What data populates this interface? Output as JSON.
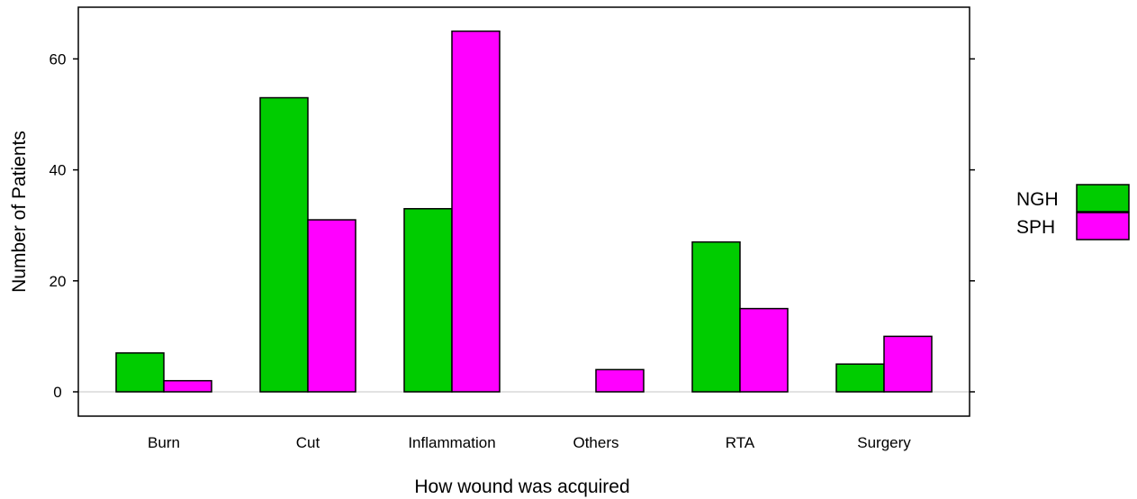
{
  "chart_data": {
    "type": "bar",
    "title": "",
    "xlabel": "How wound was acquired",
    "ylabel": "Number of Patients",
    "categories": [
      "Burn",
      "Cut",
      "Inflammation",
      "Others",
      "RTA",
      "Surgery"
    ],
    "series": [
      {
        "name": "NGH",
        "color": "#00cc00",
        "values": [
          7,
          53,
          33,
          0,
          27,
          5
        ]
      },
      {
        "name": "SPH",
        "color": "#ff00ff",
        "values": [
          2,
          31,
          65,
          4,
          15,
          10
        ]
      }
    ],
    "ylim": [
      0,
      70
    ],
    "yticks": [
      0,
      20,
      40,
      60
    ],
    "grid": false,
    "legend_position": "right"
  }
}
